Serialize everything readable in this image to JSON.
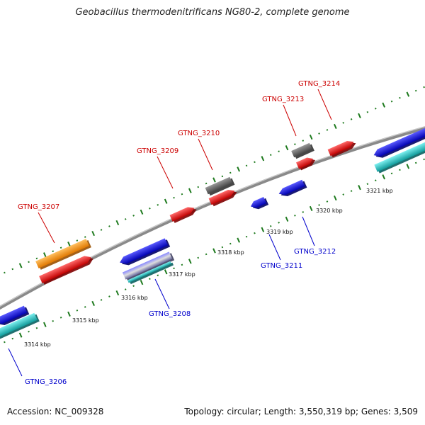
{
  "title": "Geobacillus thermodenitrificans NG80-2, complete genome",
  "accession_text": "Accession: NC_009328",
  "summary_text": "Topology: circular; Length: 3,550,319 bp; Genes: 3,509",
  "colors": {
    "backbone": "#8a8a8a",
    "dotted_track": "#1e7a1e",
    "forward_label": "#cc0000",
    "reverse_label": "#0000cc",
    "red_gene": "#ee1111",
    "orange_gene": "#ff9900",
    "grey_gene": "#666666",
    "blue_gene": "#1111ee",
    "cyan_gene": "#22cccc"
  },
  "scale_ticks": [
    "3314 kbp",
    "3315 kbp",
    "3316 kbp",
    "3317 kbp",
    "3318 kbp",
    "3319 kbp",
    "3320 kbp",
    "3321 kbp"
  ],
  "genes_forward": [
    "GTNG_3207",
    "GTNG_3209",
    "GTNG_3210",
    "GTNG_3213",
    "GTNG_3214"
  ],
  "genes_reverse": [
    "GTNG_3206",
    "GTNG_3208",
    "GTNG_3211",
    "GTNG_3212"
  ]
}
